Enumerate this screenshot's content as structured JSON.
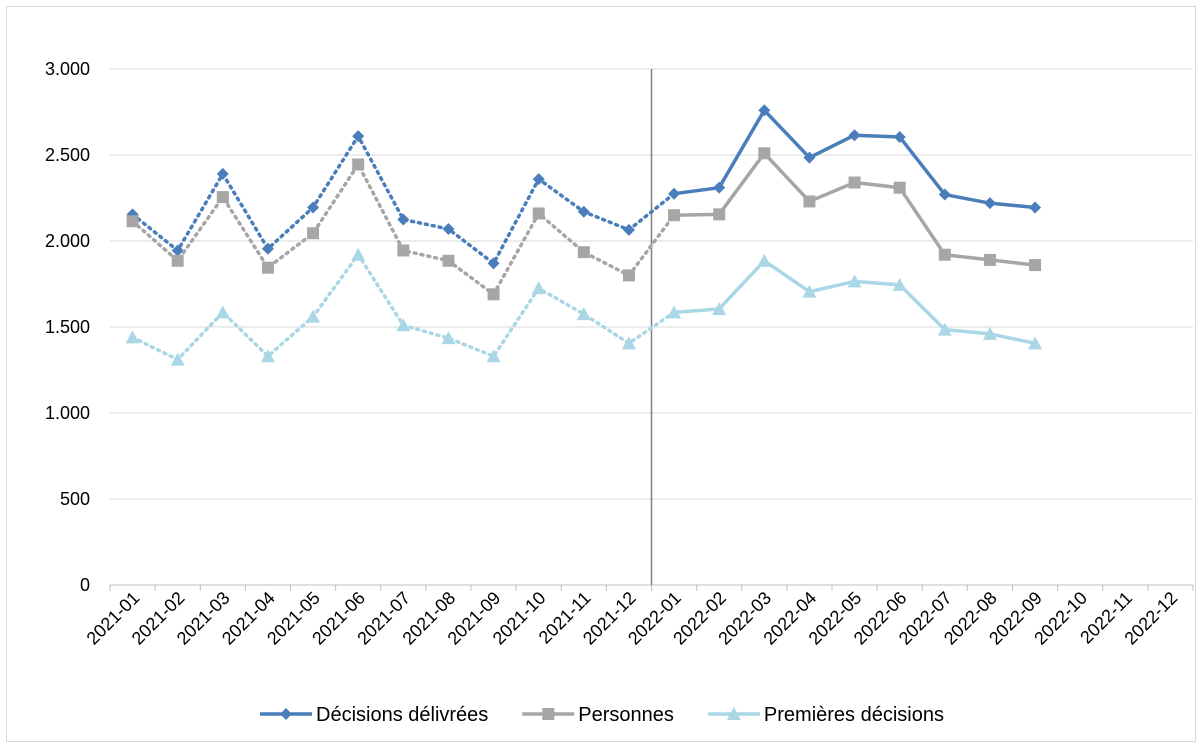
{
  "chart_data": {
    "type": "line",
    "title": "",
    "xlabel": "",
    "ylabel": "",
    "categories": [
      "2021-01",
      "2021-02",
      "2021-03",
      "2021-04",
      "2021-05",
      "2021-06",
      "2021-07",
      "2021-08",
      "2021-09",
      "2021-10",
      "2021-11",
      "2021-12",
      "2022-01",
      "2022-02",
      "2022-03",
      "2022-04",
      "2022-05",
      "2022-06",
      "2022-07",
      "2022-08",
      "2022-09",
      "2022-10",
      "2022-11",
      "2022-12"
    ],
    "ylim": [
      0,
      3000
    ],
    "yticks": [
      0,
      500,
      1000,
      1500,
      2000,
      2500,
      3000
    ],
    "ytick_labels": [
      "0",
      "500",
      "1.000",
      "1.500",
      "2.000",
      "2.500",
      "3.000"
    ],
    "grid": true,
    "legend_position": "bottom",
    "vertical_marker_between": [
      "2021-12",
      "2022-01"
    ],
    "dotted_through": "2022-01",
    "series": [
      {
        "name": "Décisions délivrées",
        "color": "#4a7ebb",
        "marker": "diamond",
        "values": [
          2155,
          1945,
          2390,
          1955,
          2195,
          2610,
          2125,
          2070,
          1870,
          2360,
          2170,
          2065,
          2275,
          2310,
          2760,
          2485,
          2615,
          2605,
          2270,
          2220,
          2195,
          null,
          null,
          null
        ]
      },
      {
        "name": "Personnes",
        "color": "#a6a6a6",
        "marker": "square",
        "values": [
          2115,
          1885,
          2255,
          1845,
          2045,
          2445,
          1945,
          1885,
          1690,
          2160,
          1935,
          1800,
          2150,
          2155,
          2510,
          2230,
          2340,
          2310,
          1920,
          1890,
          1860,
          null,
          null,
          null
        ]
      },
      {
        "name": "Premières décisions",
        "color": "#a9d7e6",
        "marker": "triangle",
        "values": [
          1440,
          1310,
          1585,
          1330,
          1560,
          1920,
          1510,
          1435,
          1330,
          1725,
          1575,
          1405,
          1585,
          1605,
          1885,
          1705,
          1765,
          1745,
          1485,
          1460,
          1405,
          null,
          null,
          null
        ]
      }
    ]
  }
}
